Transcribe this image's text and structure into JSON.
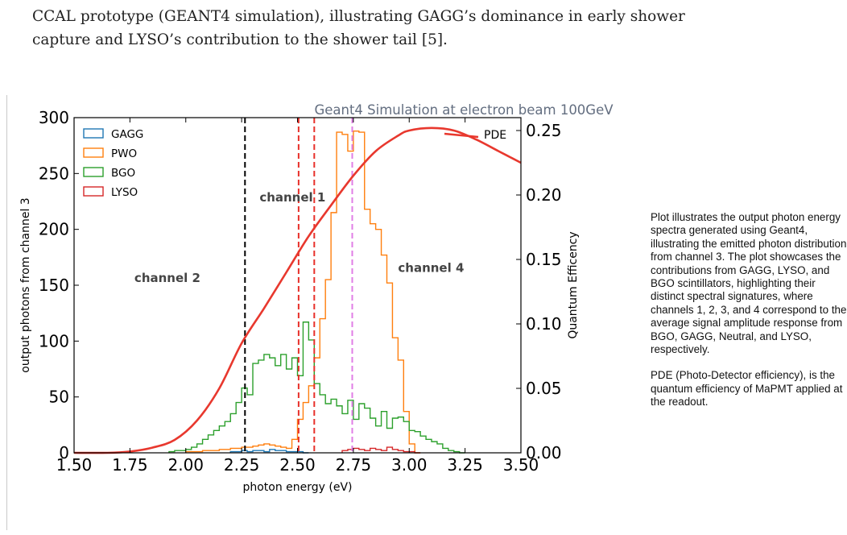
{
  "caption": {
    "line1": "CCAL prototype (GEANT4 simulation), illustrating GAGG’s dominance in early shower",
    "line2": "capture and LYSO’s contribution to the shower tail [5]."
  },
  "side_note": {
    "paragraph1": "Plot illustrates the output photon energy spectra generated using Geant4, illustrating the emitted photon distribution from channel 3. The plot showcases the contributions from GAGG, LYSO, and BGO scintillators, highlighting their distinct spectral signatures, where channels 1, 2, 3, and 4 correspond to the average signal amplitude response from BGO, GAGG, Neutral, and LYSO, respectively.",
    "paragraph2": "PDE (Photo-Detector efficiency), is the quantum efficiency of MaPMT applied at the readout."
  },
  "chart_data": {
    "type": "line",
    "title": "Geant4 Simulation at electron beam 100GeV",
    "xlabel": "photon energy (eV)",
    "ylabel": "output photons from channel 3",
    "ylabel_right": "Quantum Efficency",
    "xlim": [
      1.5,
      3.5
    ],
    "ylim": [
      0,
      300
    ],
    "ylim_right": [
      0,
      0.26
    ],
    "x_ticks": [
      "1.50",
      "1.75",
      "2.00",
      "2.25",
      "2.50",
      "2.75",
      "3.00",
      "3.25",
      "3.50"
    ],
    "y_ticks": [
      "0",
      "50",
      "100",
      "150",
      "200",
      "250",
      "300"
    ],
    "y_right_ticks": [
      "0.00",
      "0.05",
      "0.10",
      "0.15",
      "0.20",
      "0.25"
    ],
    "grid": false,
    "legend_position": "top-left",
    "bin_width": 0.025,
    "series": [
      {
        "name": "GAGG",
        "type": "step",
        "color": "#1f77b4",
        "x_start": 2.2,
        "values": [
          1,
          1,
          2,
          1,
          2,
          2,
          1,
          3,
          2,
          2,
          1,
          1,
          1,
          0
        ]
      },
      {
        "name": "PWO",
        "type": "step",
        "color": "#ff7f0e",
        "x_start": 2.0,
        "values": [
          1,
          1,
          1,
          2,
          2,
          2,
          3,
          3,
          4,
          4,
          5,
          5,
          6,
          7,
          8,
          7,
          6,
          5,
          4,
          12,
          30,
          45,
          60,
          85,
          120,
          155,
          215,
          287,
          285,
          270,
          288,
          287,
          218,
          205,
          200,
          177,
          152,
          103,
          83,
          37,
          8,
          0
        ]
      },
      {
        "name": "BGO",
        "type": "step",
        "color": "#2ca02c",
        "x_start": 1.925,
        "values": [
          1,
          2,
          2,
          3,
          5,
          8,
          12,
          16,
          20,
          24,
          28,
          35,
          45,
          58,
          52,
          80,
          83,
          88,
          85,
          78,
          88,
          75,
          85,
          69,
          117,
          101,
          62,
          52,
          44,
          48,
          42,
          35,
          47,
          30,
          44,
          40,
          31,
          24,
          37,
          22,
          31,
          32,
          28,
          20,
          19,
          15,
          12,
          10,
          8,
          4,
          2,
          1,
          0
        ]
      },
      {
        "name": "LYSO",
        "type": "step",
        "color": "#d62728",
        "x_start": 2.7,
        "values": [
          2,
          3,
          4,
          3,
          2,
          4,
          3,
          2,
          5,
          3,
          2,
          1,
          1,
          0
        ]
      },
      {
        "name": "PDE",
        "type": "line",
        "axis": "right",
        "color": "#e8382e",
        "x": [
          1.5,
          1.65,
          1.75,
          1.85,
          1.95,
          2.05,
          2.15,
          2.25,
          2.35,
          2.45,
          2.55,
          2.65,
          2.75,
          2.85,
          2.95,
          3.0,
          3.1,
          3.2,
          3.3,
          3.4,
          3.5
        ],
        "values": [
          0.0,
          0.0,
          0.001,
          0.004,
          0.01,
          0.025,
          0.05,
          0.085,
          0.112,
          0.14,
          0.168,
          0.192,
          0.215,
          0.234,
          0.246,
          0.25,
          0.252,
          0.25,
          0.243,
          0.234,
          0.225
        ]
      }
    ],
    "vlines": [
      {
        "x": 2.265,
        "color": "#000000"
      },
      {
        "x": 2.505,
        "color": "#e8302a"
      },
      {
        "x": 2.575,
        "color": "#e8302a"
      },
      {
        "x": 2.745,
        "color": "#e07ee6"
      }
    ],
    "annotations": [
      {
        "text": "channel 1",
        "x": 2.33,
        "y": 225
      },
      {
        "text": "channel 2",
        "x": 1.77,
        "y": 153
      },
      {
        "text": "channel 4",
        "x": 2.95,
        "y": 162
      }
    ],
    "pde_label": "PDE"
  }
}
